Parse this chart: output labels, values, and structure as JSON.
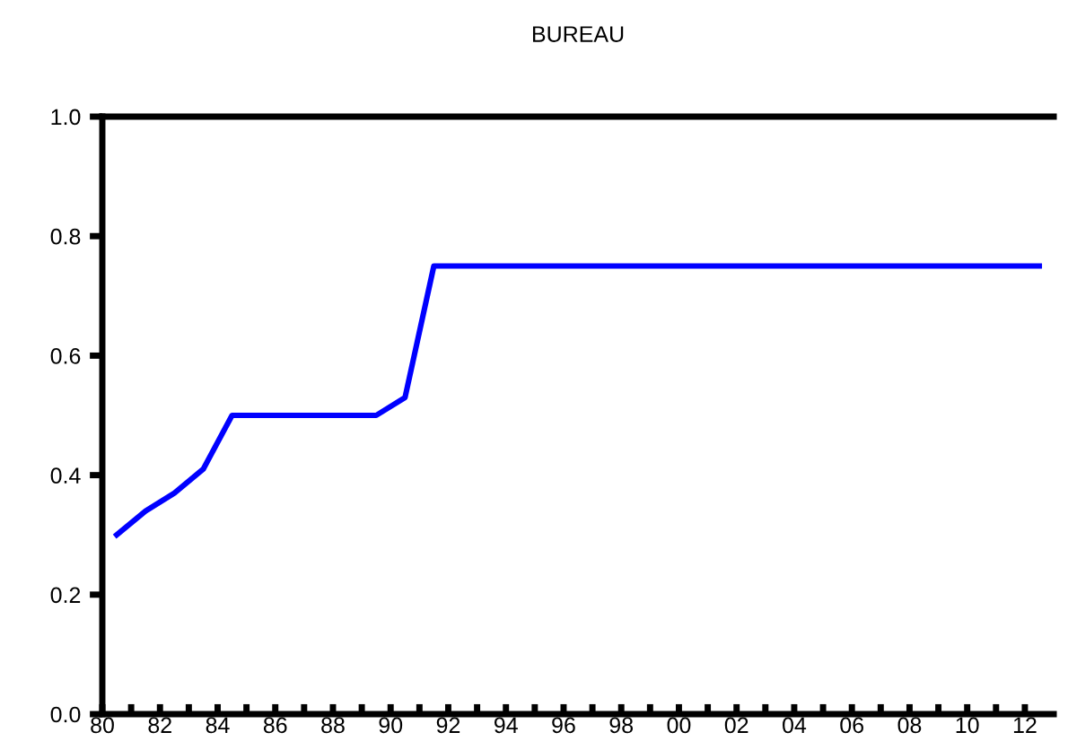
{
  "chart_data": {
    "type": "line",
    "title": "BUREAU",
    "x": [
      1980.5,
      1981.5,
      1982.5,
      1983.5,
      1984.5,
      1985.5,
      1986.5,
      1987.5,
      1988.5,
      1989.5,
      1990.5,
      1991.5,
      1992.5,
      1993.5,
      1994.5,
      1995.5,
      1996.5,
      1997.5,
      1998.5,
      1999.5,
      2000.5,
      2001.5,
      2002.5,
      2003.5,
      2004.5,
      2005.5,
      2006.5,
      2007.5,
      2008.5,
      2009.5,
      2010.5,
      2011.5,
      2012.5
    ],
    "series": [
      {
        "color": "#0000ff",
        "values": [
          0.3,
          0.34,
          0.37,
          0.41,
          0.5,
          0.5,
          0.5,
          0.5,
          0.5,
          0.5,
          0.53,
          0.75,
          0.75,
          0.75,
          0.75,
          0.75,
          0.75,
          0.75,
          0.75,
          0.75,
          0.75,
          0.75,
          0.75,
          0.75,
          0.75,
          0.75,
          0.75,
          0.75,
          0.75,
          0.75,
          0.75,
          0.75,
          0.75
        ]
      }
    ],
    "xlim": [
      1980,
      2013
    ],
    "xticks": [
      {
        "value": 1980,
        "label": "80"
      },
      {
        "value": 1981,
        "label": null
      },
      {
        "value": 1982,
        "label": "82"
      },
      {
        "value": 1983,
        "label": null
      },
      {
        "value": 1984,
        "label": "84"
      },
      {
        "value": 1985,
        "label": null
      },
      {
        "value": 1986,
        "label": "86"
      },
      {
        "value": 1987,
        "label": null
      },
      {
        "value": 1988,
        "label": "88"
      },
      {
        "value": 1989,
        "label": null
      },
      {
        "value": 1990,
        "label": "90"
      },
      {
        "value": 1991,
        "label": null
      },
      {
        "value": 1992,
        "label": "92"
      },
      {
        "value": 1993,
        "label": null
      },
      {
        "value": 1994,
        "label": "94"
      },
      {
        "value": 1995,
        "label": null
      },
      {
        "value": 1996,
        "label": "96"
      },
      {
        "value": 1997,
        "label": null
      },
      {
        "value": 1998,
        "label": "98"
      },
      {
        "value": 1999,
        "label": null
      },
      {
        "value": 2000,
        "label": "00"
      },
      {
        "value": 2001,
        "label": null
      },
      {
        "value": 2002,
        "label": "02"
      },
      {
        "value": 2003,
        "label": null
      },
      {
        "value": 2004,
        "label": "04"
      },
      {
        "value": 2005,
        "label": null
      },
      {
        "value": 2006,
        "label": "06"
      },
      {
        "value": 2007,
        "label": null
      },
      {
        "value": 2008,
        "label": "08"
      },
      {
        "value": 2009,
        "label": null
      },
      {
        "value": 2010,
        "label": "10"
      },
      {
        "value": 2011,
        "label": null
      },
      {
        "value": 2012,
        "label": "12"
      }
    ],
    "ylim": [
      0.0,
      1.0
    ],
    "yticks": [
      {
        "value": 0.0,
        "label": "0.0"
      },
      {
        "value": 0.2,
        "label": "0.2"
      },
      {
        "value": 0.4,
        "label": "0.4"
      },
      {
        "value": 0.6,
        "label": "0.6"
      },
      {
        "value": 0.8,
        "label": "0.8"
      },
      {
        "value": 1.0,
        "label": "1.0"
      }
    ],
    "grid": false,
    "legend": false,
    "marker": "none",
    "line_style": "solid"
  }
}
